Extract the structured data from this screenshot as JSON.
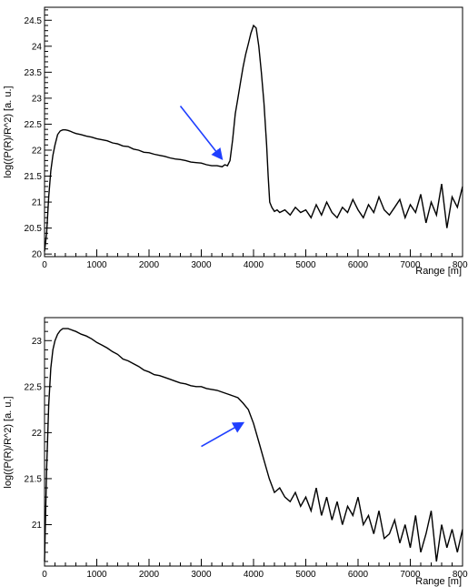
{
  "chart_data": [
    {
      "type": "line",
      "panel": "top",
      "xlabel": "Range [m]",
      "ylabel": "log((P(R)/R^2) [a. u.]",
      "xlim": [
        0,
        8000
      ],
      "ylim": [
        19.95,
        24.75
      ],
      "x_ticks": [
        "0",
        "1000",
        "2000",
        "3000",
        "4000",
        "5000",
        "6000",
        "7000",
        "8000"
      ],
      "y_ticks": [
        "20",
        "20.5",
        "21",
        "21.5",
        "22",
        "22.5",
        "23",
        "23.5",
        "24",
        "24.5"
      ],
      "grid": false,
      "legend": "none",
      "colors": {
        "series": "#000000",
        "arrow": "#1f3fff"
      },
      "arrow": {
        "from": [
          2600,
          22.85
        ],
        "to": [
          3380,
          21.85
        ]
      },
      "series": [
        {
          "x": [
            0,
            40,
            80,
            120,
            160,
            200,
            250,
            300,
            350,
            400,
            450,
            500,
            550,
            600,
            700,
            800,
            900,
            1000,
            1100,
            1200,
            1300,
            1400,
            1500,
            1600,
            1700,
            1800,
            1900,
            2000,
            2100,
            2200,
            2300,
            2400,
            2500,
            2600,
            2700,
            2800,
            2900,
            3000,
            3100,
            3200,
            3300,
            3400,
            3450,
            3500,
            3550,
            3600,
            3650,
            3700,
            3750,
            3800,
            3850,
            3900,
            3950,
            4000,
            4050,
            4100,
            4150,
            4200,
            4250,
            4280,
            4310,
            4350,
            4400,
            4450,
            4500,
            4600,
            4700,
            4800,
            4900,
            5000,
            5100,
            5200,
            5300,
            5400,
            5500,
            5600,
            5700,
            5800,
            5900,
            6000,
            6100,
            6200,
            6300,
            6400,
            6500,
            6600,
            6700,
            6800,
            6900,
            7000,
            7100,
            7200,
            7300,
            7400,
            7500,
            7600,
            7700,
            7800,
            7900,
            8000
          ],
          "y": [
            20.05,
            20.4,
            21.1,
            21.6,
            21.9,
            22.1,
            22.3,
            22.37,
            22.39,
            22.39,
            22.38,
            22.36,
            22.34,
            22.32,
            22.3,
            22.27,
            22.25,
            22.22,
            22.2,
            22.18,
            22.14,
            22.12,
            22.08,
            22.07,
            22.02,
            22.0,
            21.96,
            21.95,
            21.92,
            21.9,
            21.88,
            21.85,
            21.83,
            21.82,
            21.8,
            21.77,
            21.76,
            21.75,
            21.72,
            21.7,
            21.7,
            21.68,
            21.72,
            21.7,
            21.8,
            22.2,
            22.7,
            23.0,
            23.3,
            23.6,
            23.85,
            24.05,
            24.25,
            24.4,
            24.35,
            24.0,
            23.5,
            22.9,
            22.1,
            21.5,
            21.0,
            20.9,
            20.82,
            20.85,
            20.8,
            20.85,
            20.75,
            20.9,
            20.8,
            20.85,
            20.7,
            20.95,
            20.75,
            21.0,
            20.8,
            20.7,
            20.9,
            20.8,
            21.05,
            20.85,
            20.7,
            20.95,
            20.8,
            21.1,
            20.85,
            20.75,
            20.9,
            21.05,
            20.7,
            20.95,
            20.8,
            21.15,
            20.6,
            21.0,
            20.75,
            21.35,
            20.5,
            21.1,
            20.9,
            21.3
          ]
        }
      ]
    },
    {
      "type": "line",
      "panel": "bottom",
      "xlabel": "Range [m]",
      "ylabel": "log((P(R)/R^2) [a. u.]",
      "xlim": [
        0,
        8000
      ],
      "ylim": [
        20.55,
        23.25
      ],
      "x_ticks": [
        "0",
        "1000",
        "2000",
        "3000",
        "4000",
        "5000",
        "6000",
        "7000",
        "8000"
      ],
      "y_ticks": [
        "21",
        "21.5",
        "22",
        "22.5",
        "23"
      ],
      "grid": false,
      "legend": "none",
      "colors": {
        "series": "#000000",
        "arrow": "#1f3fff"
      },
      "arrow": {
        "from": [
          3000,
          21.85
        ],
        "to": [
          3780,
          22.1
        ]
      },
      "series": [
        {
          "x": [
            0,
            40,
            80,
            120,
            160,
            200,
            250,
            300,
            350,
            400,
            450,
            500,
            550,
            600,
            700,
            800,
            900,
            1000,
            1100,
            1200,
            1300,
            1400,
            1500,
            1600,
            1700,
            1800,
            1900,
            2000,
            2100,
            2200,
            2300,
            2400,
            2500,
            2600,
            2700,
            2800,
            2900,
            3000,
            3100,
            3200,
            3300,
            3400,
            3500,
            3600,
            3700,
            3800,
            3900,
            4000,
            4100,
            4200,
            4300,
            4400,
            4500,
            4600,
            4700,
            4800,
            4900,
            5000,
            5100,
            5200,
            5300,
            5400,
            5500,
            5600,
            5700,
            5800,
            5900,
            6000,
            6100,
            6200,
            6300,
            6400,
            6500,
            6600,
            6700,
            6800,
            6900,
            7000,
            7100,
            7200,
            7300,
            7400,
            7500,
            7600,
            7700,
            7800,
            7900,
            8000
          ],
          "y": [
            20.6,
            21.6,
            22.3,
            22.7,
            22.9,
            23.0,
            23.07,
            23.11,
            23.13,
            23.13,
            23.13,
            23.12,
            23.11,
            23.1,
            23.07,
            23.05,
            23.02,
            22.98,
            22.95,
            22.92,
            22.88,
            22.85,
            22.8,
            22.78,
            22.75,
            22.72,
            22.68,
            22.66,
            22.63,
            22.62,
            22.6,
            22.58,
            22.56,
            22.54,
            22.53,
            22.51,
            22.5,
            22.5,
            22.48,
            22.47,
            22.46,
            22.44,
            22.42,
            22.4,
            22.38,
            22.32,
            22.25,
            22.1,
            21.9,
            21.7,
            21.5,
            21.35,
            21.4,
            21.3,
            21.25,
            21.35,
            21.2,
            21.3,
            21.15,
            21.4,
            21.1,
            21.3,
            21.05,
            21.25,
            21.0,
            21.2,
            21.1,
            21.3,
            21.0,
            21.1,
            20.9,
            21.15,
            20.85,
            20.9,
            21.05,
            20.8,
            21.0,
            20.75,
            21.1,
            20.7,
            20.9,
            21.15,
            20.6,
            21.0,
            20.75,
            20.95,
            20.7,
            20.95
          ]
        }
      ]
    }
  ]
}
